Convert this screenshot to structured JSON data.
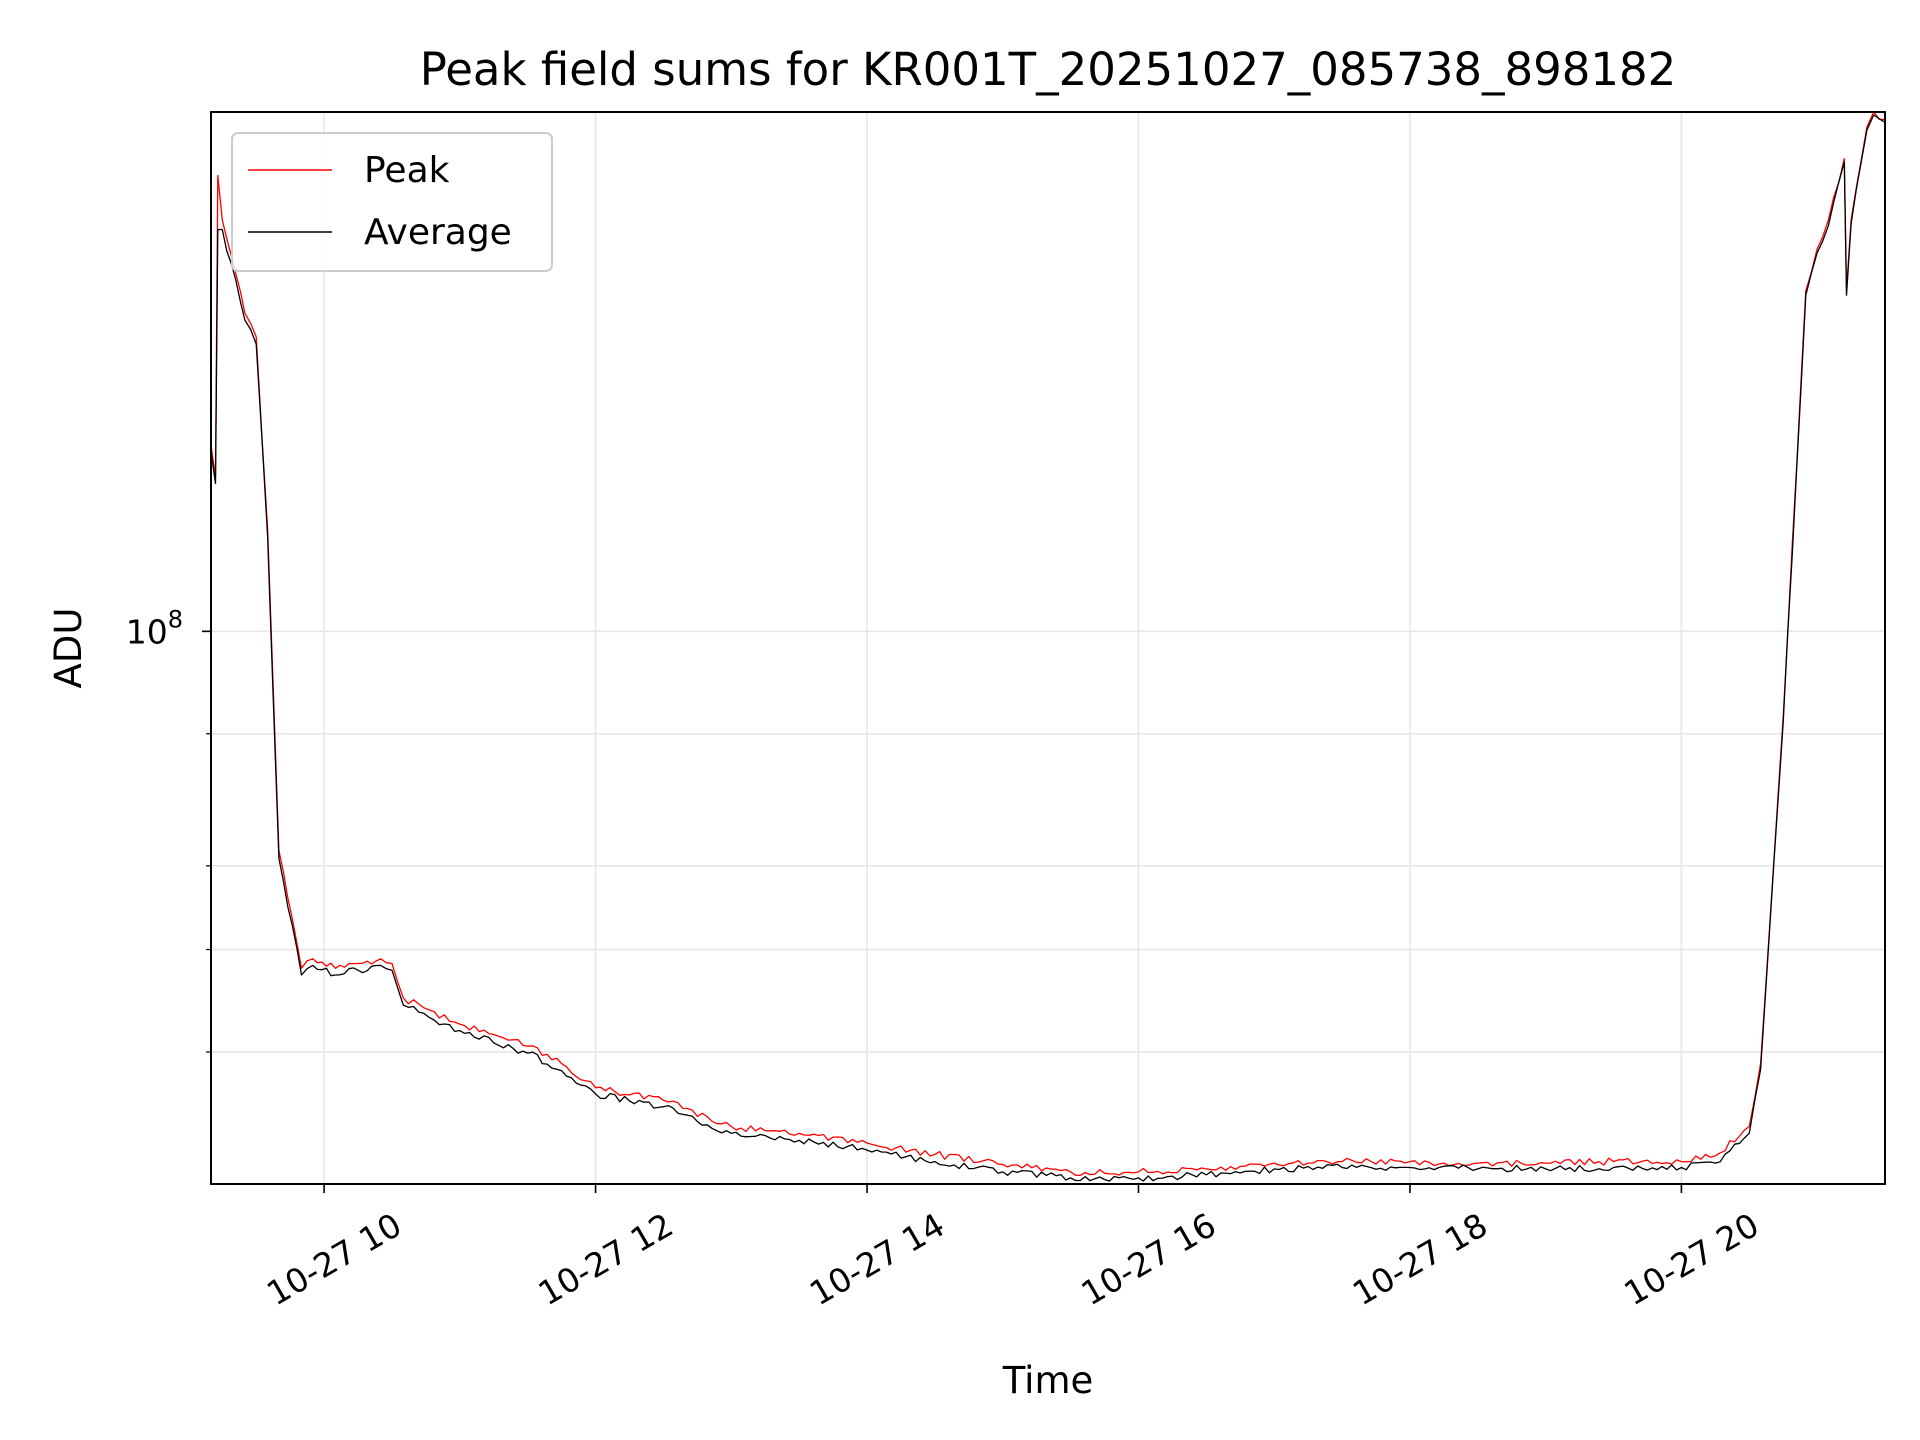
{
  "chart_data": {
    "type": "line",
    "title": "Peak field sums for KR001T_20251027_085738_898182",
    "xlabel": "Time",
    "ylabel": "ADU",
    "y_scale": "log",
    "grid": true,
    "legend_position": "top-left",
    "x_start": "2025-10-27 09:10",
    "x_end": "2025-10-27 21:30",
    "xlim": [
      "2025-10-27 09:10",
      "2025-10-27 21:30"
    ],
    "ylim": [
      30000000,
      310000000
    ],
    "x_ticks": [
      {
        "time": "2025-10-27 10:00",
        "label": "10-27 10"
      },
      {
        "time": "2025-10-27 12:00",
        "label": "10-27 12"
      },
      {
        "time": "2025-10-27 14:00",
        "label": "10-27 14"
      },
      {
        "time": "2025-10-27 16:00",
        "label": "10-27 16"
      },
      {
        "time": "2025-10-27 18:00",
        "label": "10-27 18"
      },
      {
        "time": "2025-10-27 20:00",
        "label": "10-27 20"
      }
    ],
    "y_major_ticks": [
      {
        "value": 100000000,
        "base": "10",
        "exponent": "8"
      }
    ],
    "y_minor_ticks": [
      40000000,
      50000000,
      60000000,
      80000000
    ],
    "series": [
      {
        "name": "Peak",
        "color": "#ff0000",
        "x": [
          "2025-10-27 09:10",
          "2025-10-27 09:12",
          "2025-10-27 09:13",
          "2025-10-27 09:15",
          "2025-10-27 09:25",
          "2025-10-27 09:30",
          "2025-10-27 09:35",
          "2025-10-27 09:40",
          "2025-10-27 09:50",
          "2025-10-27 09:55",
          "2025-10-27 10:05",
          "2025-10-27 10:15",
          "2025-10-27 10:25",
          "2025-10-27 10:30",
          "2025-10-27 10:35",
          "2025-10-27 11:00",
          "2025-10-27 11:30",
          "2025-10-27 11:45",
          "2025-10-27 12:00",
          "2025-10-27 12:30",
          "2025-10-27 13:00",
          "2025-10-27 13:30",
          "2025-10-27 14:00",
          "2025-10-27 14:30",
          "2025-10-27 15:00",
          "2025-10-27 15:30",
          "2025-10-27 16:00",
          "2025-10-27 16:30",
          "2025-10-27 17:00",
          "2025-10-27 17:30",
          "2025-10-27 18:00",
          "2025-10-27 18:30",
          "2025-10-27 19:00",
          "2025-10-27 19:30",
          "2025-10-27 20:00",
          "2025-10-27 20:15",
          "2025-10-27 20:30",
          "2025-10-27 20:35",
          "2025-10-27 20:45",
          "2025-10-27 20:55",
          "2025-10-27 21:00",
          "2025-10-27 21:05",
          "2025-10-27 21:12",
          "2025-10-27 21:13",
          "2025-10-27 21:15",
          "2025-10-27 21:22",
          "2025-10-27 21:25",
          "2025-10-27 21:30"
        ],
        "y": [
          150000000,
          140000000,
          270000000,
          245000000,
          200000000,
          190000000,
          125000000,
          62000000,
          48000000,
          49000000,
          48000000,
          48500000,
          49000000,
          48500000,
          45000000,
          42500000,
          40500000,
          39000000,
          37000000,
          36000000,
          34000000,
          33500000,
          32800000,
          32000000,
          31300000,
          30800000,
          30800000,
          31000000,
          31400000,
          31500000,
          31500000,
          31400000,
          31400000,
          31500000,
          31500000,
          31900000,
          34000000,
          39000000,
          83000000,
          210000000,
          230000000,
          245000000,
          280000000,
          210000000,
          245000000,
          300000000,
          310000000,
          305000000
        ]
      },
      {
        "name": "Average",
        "color": "#000000",
        "x": [
          "2025-10-27 09:10",
          "2025-10-27 09:12",
          "2025-10-27 09:13",
          "2025-10-27 09:15",
          "2025-10-27 09:25",
          "2025-10-27 09:30",
          "2025-10-27 09:35",
          "2025-10-27 09:40",
          "2025-10-27 09:50",
          "2025-10-27 09:55",
          "2025-10-27 10:05",
          "2025-10-27 10:15",
          "2025-10-27 10:25",
          "2025-10-27 10:30",
          "2025-10-27 10:35",
          "2025-10-27 11:00",
          "2025-10-27 11:30",
          "2025-10-27 11:45",
          "2025-10-27 12:00",
          "2025-10-27 12:30",
          "2025-10-27 13:00",
          "2025-10-27 13:30",
          "2025-10-27 14:00",
          "2025-10-27 14:30",
          "2025-10-27 15:00",
          "2025-10-27 15:30",
          "2025-10-27 16:00",
          "2025-10-27 16:30",
          "2025-10-27 17:00",
          "2025-10-27 17:30",
          "2025-10-27 18:00",
          "2025-10-27 18:30",
          "2025-10-27 19:00",
          "2025-10-27 19:30",
          "2025-10-27 20:00",
          "2025-10-27 20:15",
          "2025-10-27 20:30",
          "2025-10-27 20:35",
          "2025-10-27 20:45",
          "2025-10-27 20:55",
          "2025-10-27 21:00",
          "2025-10-27 21:05",
          "2025-10-27 21:12",
          "2025-10-27 21:13",
          "2025-10-27 21:15",
          "2025-10-27 21:22",
          "2025-10-27 21:25",
          "2025-10-27 21:30"
        ],
        "y": [
          148000000,
          138000000,
          240000000,
          240000000,
          197000000,
          187000000,
          123000000,
          61000000,
          47300000,
          48300000,
          47300000,
          47800000,
          48300000,
          47800000,
          44300000,
          41900000,
          39900000,
          38400000,
          36500000,
          35500000,
          33500000,
          33000000,
          32300000,
          31500000,
          30800000,
          30400000,
          30400000,
          30600000,
          31000000,
          31100000,
          31100000,
          31000000,
          31000000,
          31100000,
          31100000,
          31400000,
          33500000,
          38500000,
          82000000,
          208000000,
          228000000,
          242000000,
          278000000,
          208000000,
          243000000,
          298000000,
          308000000,
          303000000
        ]
      }
    ]
  }
}
